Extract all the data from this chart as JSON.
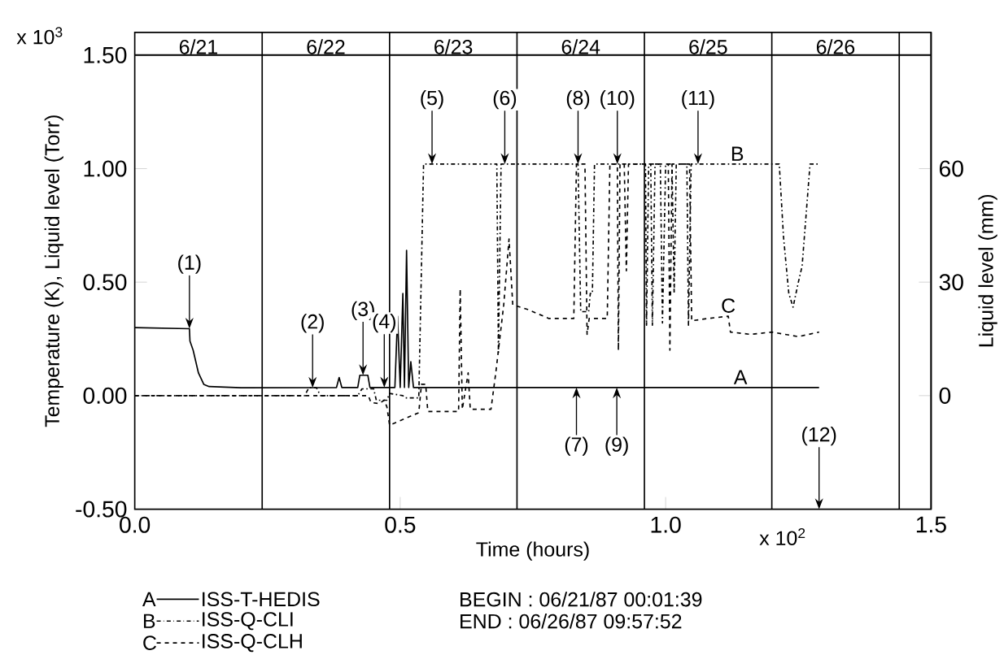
{
  "chart_data": {
    "type": "line",
    "xlabel": "Time (hours)",
    "ylabel": "Temperature (K), Liquid level (Torr)",
    "y2label": "Liquid level (mm)",
    "xlim": [
      0,
      1.5
    ],
    "ylim": [
      -0.5,
      1.6
    ],
    "y2lim": [
      -30,
      96
    ],
    "xticks": [
      {
        "value": 0,
        "label": "0.0"
      },
      {
        "value": 0.5,
        "label": "0.5"
      },
      {
        "value": 1.0,
        "label": "1.0"
      },
      {
        "value": 1.5,
        "label": "1.5"
      }
    ],
    "yticks": [
      {
        "value": -0.5,
        "label": "-0.50"
      },
      {
        "value": 0,
        "label": "0.00"
      },
      {
        "value": 0.5,
        "label": "0.50"
      },
      {
        "value": 1.0,
        "label": "1.00"
      },
      {
        "value": 1.5,
        "label": "1.50"
      }
    ],
    "y2ticks": [
      0,
      30,
      60
    ],
    "legend": "bottom left",
    "series": [
      {
        "name": "ISS-T-HEDIS",
        "color": "#000000",
        "line_style": "solid",
        "x": [
          0,
          0.103,
          0.104,
          0.11,
          0.12,
          0.13,
          0.14,
          0.2,
          0.38,
          0.385,
          0.39,
          0.42,
          0.424,
          0.439,
          0.443,
          0.49,
          0.495,
          0.5,
          0.505,
          0.508,
          0.512,
          0.516,
          0.52,
          0.525,
          1.289
        ],
        "values": [
          0.3,
          0.295,
          0.24,
          0.2,
          0.1,
          0.05,
          0.04,
          0.035,
          0.036,
          0.08,
          0.036,
          0.036,
          0.09,
          0.09,
          0.036,
          0.036,
          0.35,
          0.036,
          0.45,
          0.036,
          0.64,
          0.036,
          0.15,
          0.036,
          0.036
        ]
      },
      {
        "name": "ISS-Q-CLI",
        "color": "#000000",
        "line_style": "dash-dot",
        "x": [
          0,
          0.32,
          0.328,
          0.342,
          0.35,
          0.42,
          0.428,
          0.45,
          0.455,
          0.475,
          0.48,
          0.505,
          0.51,
          0.535,
          0.544,
          0.682,
          0.685,
          0.69,
          0.835,
          0.84,
          0.855,
          0.858,
          0.862,
          0.866,
          0.962,
          0.964,
          0.968,
          0.972,
          0.975,
          0.98,
          0.99,
          0.994,
          1.0,
          1.012,
          1.016,
          1.02,
          1.04,
          1.043,
          1.048,
          1.214,
          1.222,
          1.232,
          1.24,
          1.25,
          1.257,
          1.272,
          1.289
        ],
        "values": [
          0,
          0,
          0.035,
          0.035,
          0,
          0,
          0.03,
          0.03,
          -0.02,
          -0.02,
          0.01,
          0,
          -0.01,
          -0.01,
          1.02,
          1.02,
          0.19,
          1.02,
          1.02,
          0.37,
          0.37,
          0.45,
          0.45,
          1.02,
          1.02,
          0.31,
          1.02,
          1.02,
          0.31,
          1.02,
          1.02,
          0.32,
          1.02,
          1.02,
          0.45,
          1.02,
          1.02,
          0.31,
          1.02,
          1.02,
          0.7,
          0.45,
          0.39,
          0.5,
          0.57,
          1.02,
          1.02
        ]
      },
      {
        "name": "ISS-Q-CLH",
        "color": "#000000",
        "line_style": "dashed",
        "x": [
          0,
          0.44,
          0.445,
          0.46,
          0.47,
          0.475,
          0.48,
          0.535,
          0.54,
          0.548,
          0.552,
          0.61,
          0.613,
          0.617,
          0.628,
          0.632,
          0.671,
          0.68,
          0.695,
          0.705,
          0.712,
          0.74,
          0.78,
          0.827,
          0.832,
          0.848,
          0.852,
          0.856,
          0.89,
          0.895,
          0.909,
          0.911,
          0.914,
          0.922,
          0.926,
          0.93,
          1.005,
          1.008,
          1.012,
          1.045,
          1.049,
          1.08,
          1.118,
          1.122,
          1.16,
          1.2,
          1.25,
          1.289
        ],
        "values": [
          0,
          0,
          -0.03,
          -0.035,
          -0.02,
          -0.05,
          -0.13,
          -0.075,
          0.05,
          0.05,
          -0.07,
          -0.07,
          0.47,
          -0.06,
          0.1,
          -0.06,
          -0.06,
          0.1,
          0.4,
          0.69,
          0.4,
          0.38,
          0.34,
          0.34,
          1.02,
          1.02,
          0.27,
          0.34,
          0.34,
          1.02,
          1.02,
          0.2,
          1.02,
          1.02,
          0.55,
          1.02,
          1.02,
          0.2,
          1.02,
          1.02,
          0.33,
          0.34,
          0.35,
          0.28,
          0.27,
          0.28,
          0.26,
          0.28
        ]
      }
    ],
    "ref_lines": [
      {
        "axis": "y",
        "value": 1.5
      },
      {
        "axis": "x",
        "value": 0.24
      },
      {
        "axis": "x",
        "value": 0.48
      },
      {
        "axis": "x",
        "value": 0.72
      },
      {
        "axis": "x",
        "value": 0.96
      },
      {
        "axis": "x",
        "value": 1.2
      },
      {
        "axis": "x",
        "value": 1.44
      }
    ],
    "annotations": [
      {
        "text": "A",
        "x": 1.141,
        "y": 0.036
      },
      {
        "text": "B",
        "x": 1.135,
        "y": 1.02
      },
      {
        "text": "C",
        "x": 1.118,
        "y": 0.35
      },
      {
        "text": "(1)",
        "x": 0.103,
        "y": 0.295
      },
      {
        "text": "(2)",
        "x": 0.335,
        "y": 0.035
      },
      {
        "text": "(3)",
        "x": 0.43,
        "y": 0.09
      },
      {
        "text": "(4)",
        "x": 0.47,
        "y": 0.036
      },
      {
        "text": "(5)",
        "x": 0.56,
        "y": 1.02
      },
      {
        "text": "(6)",
        "x": 0.697,
        "y": 1.02
      },
      {
        "text": "(7)",
        "x": 0.832,
        "y": 0.036
      },
      {
        "text": "(8)",
        "x": 0.835,
        "y": 1.02
      },
      {
        "text": "(9)",
        "x": 0.908,
        "y": 0.036
      },
      {
        "text": "(10)",
        "x": 0.909,
        "y": 1.02
      },
      {
        "text": "(11)",
        "x": 1.061,
        "y": 1.02
      },
      "x 10$^{3}$",
      "x 10$^{2}$",
      "BEGIN : 06/21/87  00:01:39",
      "END   : 06/26/87  09:57:52",
      "(12)",
      "6/21",
      "6/22",
      "6/23",
      "6/24",
      "6/25",
      "6/26"
    ]
  }
}
